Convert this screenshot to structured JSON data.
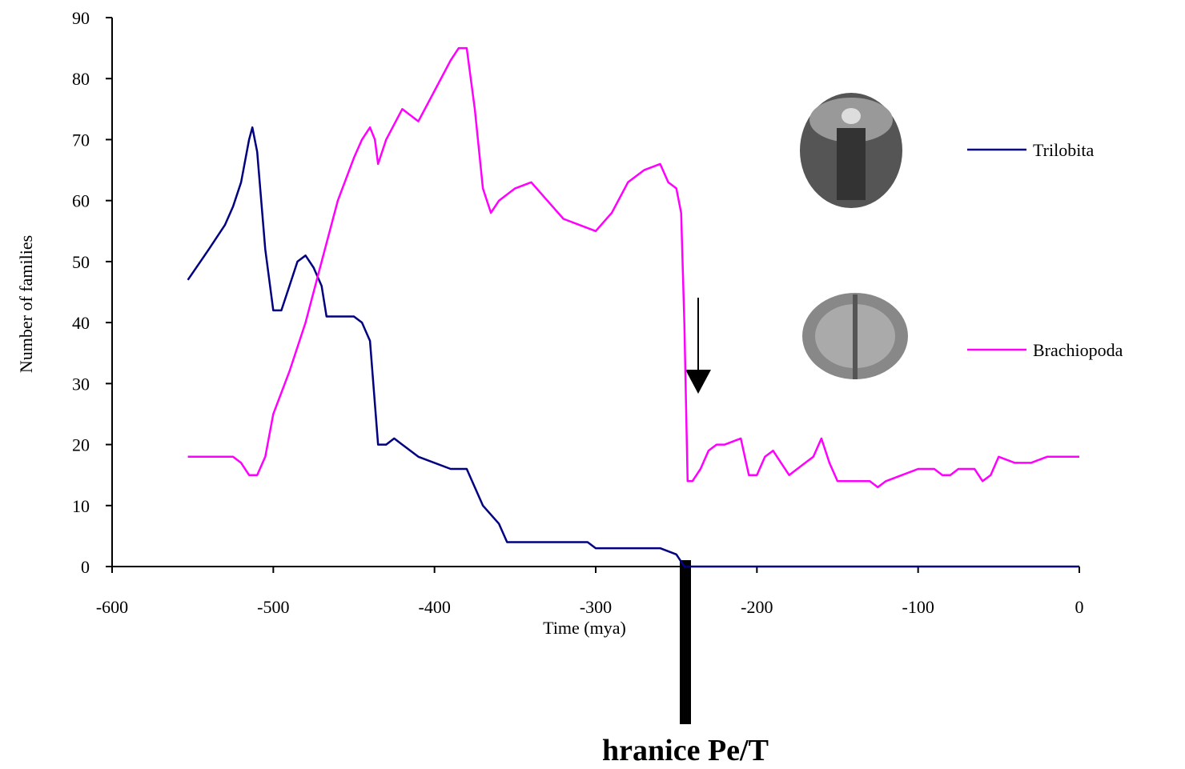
{
  "chart_data": {
    "type": "line",
    "xlabel": "Time (mya)",
    "ylabel": "Number of families",
    "annotation": "hranice Pe/T",
    "xlim": [
      -600,
      0
    ],
    "xticks": [
      -600,
      -500,
      -400,
      -300,
      -200,
      -100,
      0
    ],
    "ylim": [
      0,
      90
    ],
    "yticks": [
      0,
      10,
      20,
      30,
      40,
      50,
      60,
      70,
      80,
      90
    ],
    "grid": false,
    "legend": "right",
    "series": [
      {
        "name": "Trilobita",
        "color": "#000080",
        "x": [
          -553,
          -540,
          -530,
          -525,
          -520,
          -515,
          -513,
          -510,
          -505,
          -500,
          -495,
          -490,
          -485,
          -480,
          -475,
          -470,
          -467,
          -460,
          -450,
          -445,
          -440,
          -435,
          -430,
          -425,
          -420,
          -410,
          -400,
          -390,
          -380,
          -370,
          -360,
          -355,
          -340,
          -320,
          -305,
          -300,
          -280,
          -260,
          -250,
          -245,
          -240,
          0
        ],
        "values": [
          47,
          52,
          56,
          59,
          63,
          70,
          72,
          68,
          52,
          42,
          42,
          46,
          50,
          51,
          49,
          46,
          41,
          41,
          41,
          40,
          37,
          20,
          20,
          21,
          20,
          18,
          17,
          16,
          16,
          10,
          7,
          4,
          4,
          4,
          4,
          3,
          3,
          3,
          2,
          0,
          0,
          0
        ]
      },
      {
        "name": "Brachiopoda",
        "color": "#ff00ff",
        "x": [
          -553,
          -525,
          -520,
          -515,
          -510,
          -505,
          -500,
          -490,
          -480,
          -470,
          -460,
          -450,
          -445,
          -440,
          -437,
          -435,
          -430,
          -420,
          -410,
          -400,
          -390,
          -385,
          -380,
          -375,
          -370,
          -365,
          -360,
          -350,
          -340,
          -330,
          -320,
          -310,
          -300,
          -290,
          -280,
          -270,
          -260,
          -255,
          -250,
          -247,
          -245,
          -243,
          -240,
          -235,
          -230,
          -225,
          -220,
          -210,
          -205,
          -200,
          -195,
          -190,
          -185,
          -180,
          -175,
          -170,
          -165,
          -160,
          -155,
          -150,
          -140,
          -130,
          -125,
          -120,
          -110,
          -100,
          -90,
          -85,
          -80,
          -75,
          -65,
          -60,
          -55,
          -50,
          -40,
          -30,
          -20,
          0
        ],
        "values": [
          18,
          18,
          17,
          15,
          15,
          18,
          25,
          32,
          40,
          50,
          60,
          67,
          70,
          72,
          70,
          66,
          70,
          75,
          73,
          78,
          83,
          85,
          85,
          75,
          62,
          58,
          60,
          62,
          63,
          60,
          57,
          56,
          55,
          58,
          63,
          65,
          66,
          63,
          62,
          58,
          40,
          14,
          14,
          16,
          19,
          20,
          20,
          21,
          15,
          15,
          18,
          19,
          17,
          15,
          16,
          17,
          18,
          21,
          17,
          14,
          14,
          14,
          13,
          14,
          15,
          16,
          16,
          15,
          15,
          16,
          16,
          14,
          15,
          18,
          17,
          17,
          18,
          18
        ]
      }
    ]
  }
}
